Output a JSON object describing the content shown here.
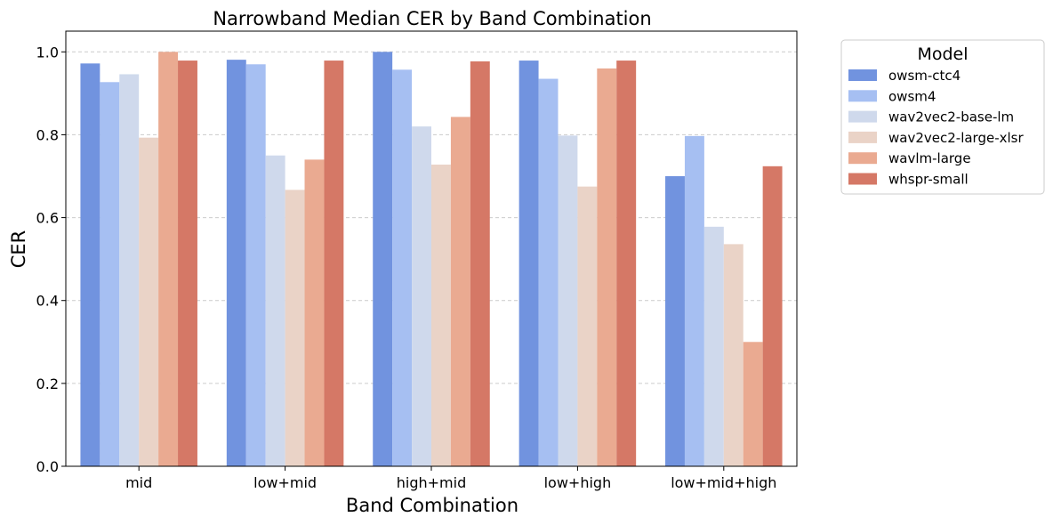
{
  "chart_data": {
    "type": "bar",
    "title": "Narrowband Median CER by Band Combination",
    "xlabel": "Band Combination",
    "ylabel": "CER",
    "ylim": [
      0,
      1.05
    ],
    "yticks": [
      "0.0",
      "0.2",
      "0.4",
      "0.6",
      "0.8",
      "1.0"
    ],
    "grid": "y-dashed",
    "legend_title": "Model",
    "legend_placement": "outside-top-right",
    "categories": [
      "mid",
      "low+mid",
      "high+mid",
      "low+high",
      "low+mid+high"
    ],
    "series": [
      {
        "name": "owsm-ctc4",
        "color": "#7193df",
        "values": [
          0.972,
          0.981,
          1.0,
          0.979,
          0.7
        ]
      },
      {
        "name": "owsm4",
        "color": "#a6bff2",
        "values": [
          0.927,
          0.97,
          0.957,
          0.935,
          0.797
        ]
      },
      {
        "name": "wav2vec2-base-lm",
        "color": "#cfd9ec",
        "values": [
          0.946,
          0.75,
          0.82,
          0.798,
          0.578
        ]
      },
      {
        "name": "wav2vec2-large-xlsr",
        "color": "#ead3c7",
        "values": [
          0.793,
          0.667,
          0.728,
          0.675,
          0.536
        ]
      },
      {
        "name": "wavlm-large",
        "color": "#eaaa91",
        "values": [
          1.0,
          0.74,
          0.843,
          0.96,
          0.3
        ]
      },
      {
        "name": "whspr-small",
        "color": "#d57866",
        "values": [
          0.979,
          0.979,
          0.977,
          0.979,
          0.724
        ]
      }
    ]
  }
}
